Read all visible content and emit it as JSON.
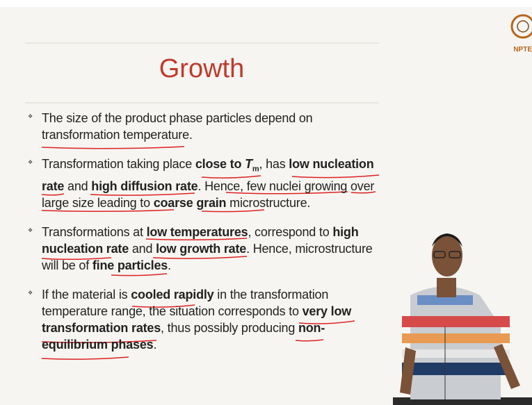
{
  "slide": {
    "title": "Growth",
    "logo_text": "NPTE",
    "bullets": [
      {
        "lines": [
          [
            {
              "text": "The size of the product phase particles depend on",
              "style": "normal"
            }
          ],
          [
            {
              "text": "transformation temperature.",
              "style": "normal"
            }
          ]
        ]
      },
      {
        "lines": [
          [
            {
              "text": "Transformation taking place ",
              "style": "normal"
            },
            {
              "text": "close to ",
              "style": "bold"
            },
            {
              "text": "T",
              "style": "bold-italic"
            },
            {
              "text": "m",
              "style": "sub"
            },
            {
              "text": ",  has ",
              "style": "normal"
            },
            {
              "text": "low nucleation",
              "style": "bold"
            }
          ],
          [
            {
              "text": "rate",
              "style": "bold"
            },
            {
              "text": " and ",
              "style": "normal"
            },
            {
              "text": "high diffusion rate",
              "style": "bold"
            },
            {
              "text": ". Hence, few nuclei growing over",
              "style": "normal"
            }
          ],
          [
            {
              "text": "large size leading to ",
              "style": "normal"
            },
            {
              "text": "coarse grain",
              "style": "bold"
            },
            {
              "text": " microstructure.",
              "style": "normal"
            }
          ]
        ]
      },
      {
        "lines": [
          [
            {
              "text": "Transformations at ",
              "style": "normal"
            },
            {
              "text": "low temperatures",
              "style": "bold"
            },
            {
              "text": ", correspond to ",
              "style": "normal"
            },
            {
              "text": "high",
              "style": "bold"
            }
          ],
          [
            {
              "text": "nucleation rate",
              "style": "bold"
            },
            {
              "text": " and ",
              "style": "normal"
            },
            {
              "text": "low growth rate",
              "style": "bold"
            },
            {
              "text": ". Hence, microstructure",
              "style": "normal"
            }
          ],
          [
            {
              "text": "will be of ",
              "style": "normal"
            },
            {
              "text": "fine particles",
              "style": "bold"
            },
            {
              "text": ".",
              "style": "normal"
            }
          ]
        ]
      },
      {
        "lines": [
          [
            {
              "text": "If the material is ",
              "style": "normal"
            },
            {
              "text": "cooled rapidly",
              "style": "bold"
            },
            {
              "text": " in the transformation",
              "style": "normal"
            }
          ],
          [
            {
              "text": "temperature range, the situation corresponds to ",
              "style": "normal"
            },
            {
              "text": "very low",
              "style": "bold"
            }
          ],
          [
            {
              "text": "transformation rates",
              "style": "bold"
            },
            {
              "text": ", thus possibly producing ",
              "style": "normal"
            },
            {
              "text": "non-",
              "style": "bold"
            }
          ],
          [
            {
              "text": "equilibrium phases",
              "style": "bold"
            },
            {
              "text": ".",
              "style": "normal"
            }
          ]
        ]
      }
    ]
  }
}
